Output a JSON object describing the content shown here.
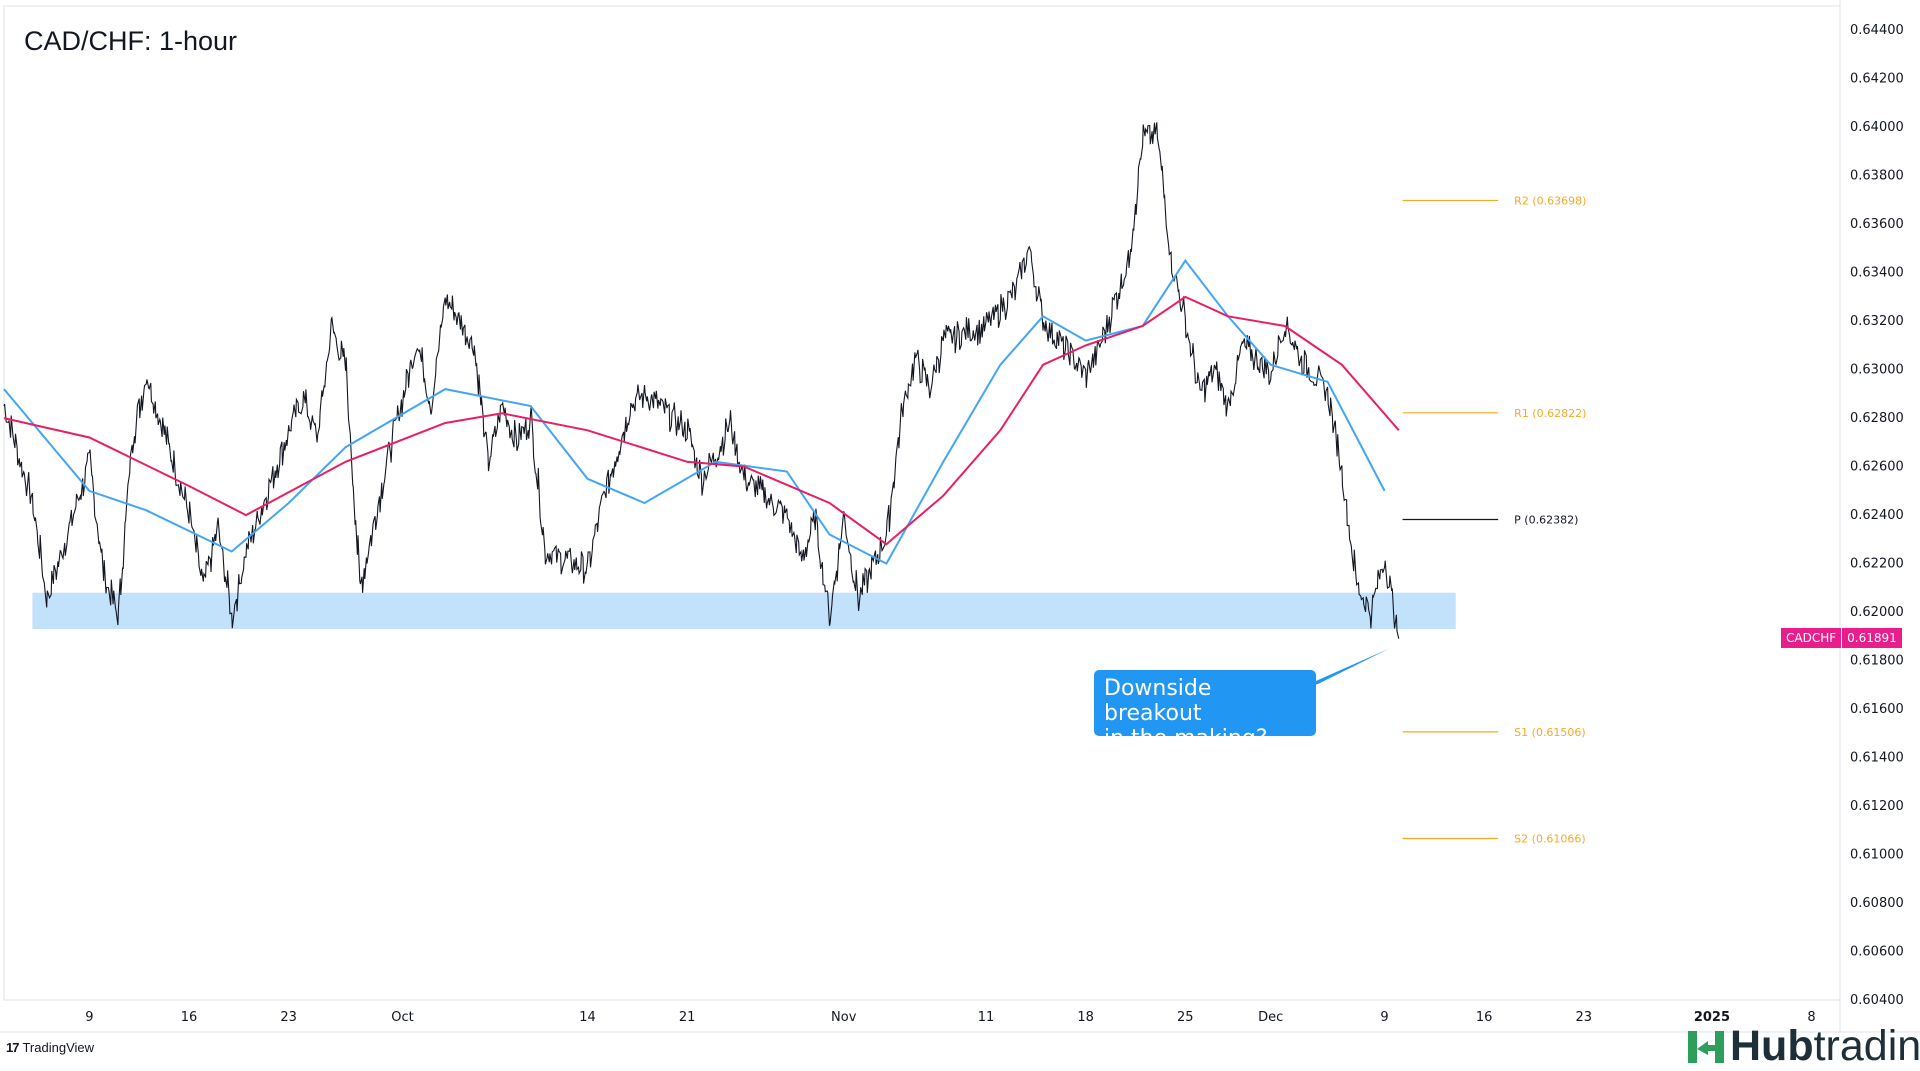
{
  "title": "CAD/CHF: 1-hour",
  "brand": {
    "tradingview": "TradingView",
    "hub_bold": "Hub",
    "hub_light": "trading",
    "hub_icon": "hubtrading-h-icon"
  },
  "callout": {
    "line1": "Downside breakout",
    "line2": "in the making?"
  },
  "current_price": {
    "symbol": "CADCHF",
    "value": "0.61891",
    "color": "#e91e8c"
  },
  "chart_data": {
    "type": "candlestick",
    "title": "CAD/CHF: 1-hour",
    "ylim": [
      0.604,
      0.645
    ],
    "y_ticks": [
      "0.64400",
      "0.64200",
      "0.64000",
      "0.63800",
      "0.63600",
      "0.63400",
      "0.63200",
      "0.63000",
      "0.62800",
      "0.62600",
      "0.62400",
      "0.62200",
      "0.62000",
      "0.61800",
      "0.61600",
      "0.61400",
      "0.61200",
      "0.61000",
      "0.60800",
      "0.60600",
      "0.60400"
    ],
    "x_ticks": [
      "9",
      "16",
      "23",
      "Oct",
      "14",
      "21",
      "Nov",
      "11",
      "18",
      "25",
      "Dec",
      "9",
      "16",
      "23",
      "2025",
      "8"
    ],
    "x_tick_dates": [
      "2024-09-09",
      "2024-09-16",
      "2024-09-23",
      "2024-10-01",
      "2024-10-14",
      "2024-10-21",
      "2024-11-01",
      "2024-11-11",
      "2024-11-18",
      "2024-11-25",
      "2024-12-01",
      "2024-12-09",
      "2024-12-16",
      "2024-12-23",
      "2025-01-01",
      "2025-01-08"
    ],
    "x_range": [
      "2024-09-03",
      "2025-01-10"
    ],
    "price_path": [
      [
        "2024-09-03",
        0.6285
      ],
      [
        "2024-09-05",
        0.6245
      ],
      [
        "2024-09-06",
        0.6205
      ],
      [
        "2024-09-09",
        0.6262
      ],
      [
        "2024-09-10",
        0.6215
      ],
      [
        "2024-09-11",
        0.6198
      ],
      [
        "2024-09-12",
        0.6272
      ],
      [
        "2024-09-13",
        0.6298
      ],
      [
        "2024-09-16",
        0.624
      ],
      [
        "2024-09-17",
        0.621
      ],
      [
        "2024-09-18",
        0.6235
      ],
      [
        "2024-09-19",
        0.6198
      ],
      [
        "2024-09-20",
        0.6225
      ],
      [
        "2024-09-23",
        0.6275
      ],
      [
        "2024-09-24",
        0.6288
      ],
      [
        "2024-09-25",
        0.6272
      ],
      [
        "2024-09-26",
        0.6318
      ],
      [
        "2024-09-27",
        0.63
      ],
      [
        "2024-09-28",
        0.621
      ],
      [
        "2024-09-30",
        0.6265
      ],
      [
        "2024-10-02",
        0.6312
      ],
      [
        "2024-10-03",
        0.6285
      ],
      [
        "2024-10-04",
        0.633
      ],
      [
        "2024-10-06",
        0.631
      ],
      [
        "2024-10-07",
        0.6262
      ],
      [
        "2024-10-08",
        0.6285
      ],
      [
        "2024-10-09",
        0.627
      ],
      [
        "2024-10-10",
        0.628
      ],
      [
        "2024-10-11",
        0.6225
      ],
      [
        "2024-10-14",
        0.6218
      ],
      [
        "2024-10-15",
        0.6245
      ],
      [
        "2024-10-17",
        0.6285
      ],
      [
        "2024-10-18",
        0.629
      ],
      [
        "2024-10-21",
        0.6275
      ],
      [
        "2024-10-22",
        0.6255
      ],
      [
        "2024-10-23",
        0.6265
      ],
      [
        "2024-10-24",
        0.6278
      ],
      [
        "2024-10-25",
        0.6255
      ],
      [
        "2024-10-28",
        0.624
      ],
      [
        "2024-10-29",
        0.6222
      ],
      [
        "2024-10-30",
        0.6238
      ],
      [
        "2024-10-31",
        0.6198
      ],
      [
        "2024-11-01",
        0.624
      ],
      [
        "2024-11-02",
        0.6205
      ],
      [
        "2024-11-04",
        0.6232
      ],
      [
        "2024-11-05",
        0.628
      ],
      [
        "2024-11-06",
        0.6305
      ],
      [
        "2024-11-07",
        0.6292
      ],
      [
        "2024-11-08",
        0.6312
      ],
      [
        "2024-11-11",
        0.6318
      ],
      [
        "2024-11-12",
        0.6325
      ],
      [
        "2024-11-13",
        0.6332
      ],
      [
        "2024-11-14",
        0.635
      ],
      [
        "2024-11-15",
        0.632
      ],
      [
        "2024-11-18",
        0.6298
      ],
      [
        "2024-11-19",
        0.631
      ],
      [
        "2024-11-20",
        0.6328
      ],
      [
        "2024-11-21",
        0.6345
      ],
      [
        "2024-11-22",
        0.6395
      ],
      [
        "2024-11-23",
        0.6398
      ],
      [
        "2024-11-24",
        0.6345
      ],
      [
        "2024-11-25",
        0.632
      ],
      [
        "2024-11-26",
        0.629
      ],
      [
        "2024-11-27",
        0.63
      ],
      [
        "2024-11-28",
        0.6285
      ],
      [
        "2024-11-29",
        0.631
      ],
      [
        "2024-12-01",
        0.6298
      ],
      [
        "2024-12-02",
        0.632
      ],
      [
        "2024-12-03",
        0.6305
      ],
      [
        "2024-12-04",
        0.6298
      ],
      [
        "2024-12-05",
        0.629
      ],
      [
        "2024-12-06",
        0.6258
      ],
      [
        "2024-12-07",
        0.6212
      ],
      [
        "2024-12-08",
        0.62
      ],
      [
        "2024-12-09",
        0.6222
      ],
      [
        "2024-12-10",
        0.6189
      ]
    ],
    "moving_averages": [
      {
        "color": "#42a5f5",
        "path": [
          [
            "2024-09-03",
            0.6292
          ],
          [
            "2024-09-09",
            0.625
          ],
          [
            "2024-09-13",
            0.6242
          ],
          [
            "2024-09-19",
            0.6225
          ],
          [
            "2024-09-23",
            0.6245
          ],
          [
            "2024-09-27",
            0.6268
          ],
          [
            "2024-10-04",
            0.6292
          ],
          [
            "2024-10-10",
            0.6285
          ],
          [
            "2024-10-14",
            0.6255
          ],
          [
            "2024-10-18",
            0.6245
          ],
          [
            "2024-10-23",
            0.6262
          ],
          [
            "2024-10-28",
            0.6258
          ],
          [
            "2024-10-31",
            0.6232
          ],
          [
            "2024-11-04",
            0.622
          ],
          [
            "2024-11-08",
            0.6262
          ],
          [
            "2024-11-12",
            0.6302
          ],
          [
            "2024-11-15",
            0.6322
          ],
          [
            "2024-11-18",
            0.6312
          ],
          [
            "2024-11-22",
            0.6318
          ],
          [
            "2024-11-25",
            0.6345
          ],
          [
            "2024-11-28",
            0.6322
          ],
          [
            "2024-12-01",
            0.6302
          ],
          [
            "2024-12-05",
            0.6295
          ],
          [
            "2024-12-09",
            0.625
          ]
        ]
      },
      {
        "color": "#e91e63",
        "path": [
          [
            "2024-09-03",
            0.628
          ],
          [
            "2024-09-09",
            0.6272
          ],
          [
            "2024-09-16",
            0.6252
          ],
          [
            "2024-09-20",
            0.624
          ],
          [
            "2024-09-27",
            0.6262
          ],
          [
            "2024-10-04",
            0.6278
          ],
          [
            "2024-10-08",
            0.6282
          ],
          [
            "2024-10-14",
            0.6275
          ],
          [
            "2024-10-21",
            0.6262
          ],
          [
            "2024-10-25",
            0.626
          ],
          [
            "2024-10-31",
            0.6245
          ],
          [
            "2024-11-04",
            0.6228
          ],
          [
            "2024-11-08",
            0.6248
          ],
          [
            "2024-11-12",
            0.6275
          ],
          [
            "2024-11-15",
            0.6302
          ],
          [
            "2024-11-18",
            0.631
          ],
          [
            "2024-11-22",
            0.6318
          ],
          [
            "2024-11-25",
            0.633
          ],
          [
            "2024-11-28",
            0.6322
          ],
          [
            "2024-12-02",
            0.6318
          ],
          [
            "2024-12-06",
            0.6302
          ],
          [
            "2024-12-10",
            0.6275
          ]
        ]
      }
    ],
    "zone": {
      "from": 0.6193,
      "to": 0.6208,
      "x_range": [
        "2024-09-05",
        "2024-12-14"
      ],
      "color": "#bbdefb"
    },
    "pivots": [
      {
        "label": "R2 (0.63698)",
        "value": 0.63698,
        "color": "#f9a825"
      },
      {
        "label": "R1 (0.62822)",
        "value": 0.62822,
        "color": "#f9a825"
      },
      {
        "label": "P (0.62382)",
        "value": 0.62382,
        "color": "#131722"
      },
      {
        "label": "S1 (0.61506)",
        "value": 0.61506,
        "color": "#f9a825"
      },
      {
        "label": "S2 (0.61066)",
        "value": 0.61066,
        "color": "#f9a825"
      }
    ],
    "pivot_x_range": [
      "2024-12-09",
      "2024-12-16"
    ]
  }
}
